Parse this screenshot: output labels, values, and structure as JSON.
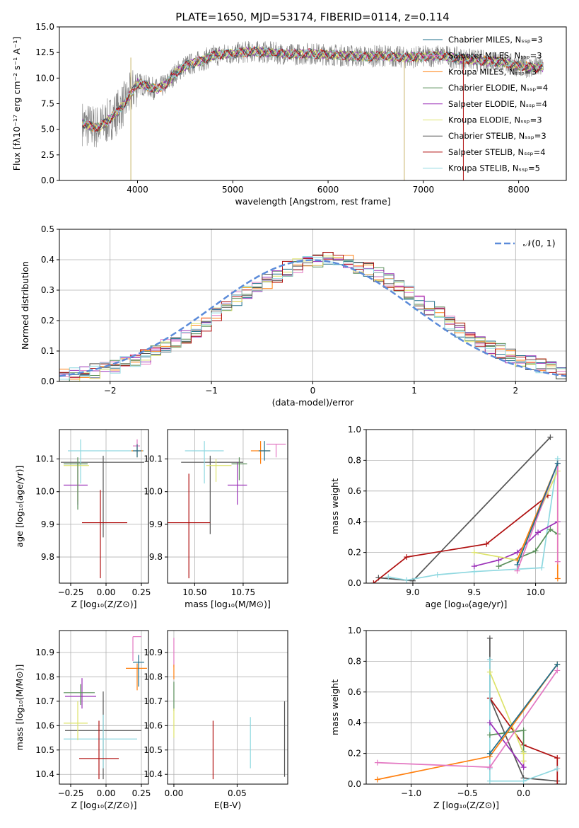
{
  "figure_title": "PLATE=1650, MJD=53174, FIBERID=0114, z=0.114",
  "colors": {
    "Chabrier MILES": "#1f6f8b",
    "Salpeter MILES": "#e377c2",
    "Kroupa MILES": "#ff7f0e",
    "Chabrier ELODIE": "#5a8f5a",
    "Salpeter ELODIE": "#9b30b8",
    "Kroupa ELODIE": "#dde36a",
    "Chabrier STELIB": "#555555",
    "Salpeter STELIB": "#b01010",
    "Kroupa STELIB": "#8fd8e0",
    "data": "#808080",
    "gaussian": "#5b8bd9"
  },
  "chart_data": [
    {
      "id": "spectrum",
      "type": "line",
      "title": "PLATE=1650, MJD=53174, FIBERID=0114, z=0.114",
      "xlabel": "wavelength [Angstrom, rest frame]",
      "ylabel": "Flux [fλ10⁻¹⁷ erg cm⁻² s⁻¹ A⁻¹]",
      "xlim": [
        3180,
        8500
      ],
      "ylim": [
        0,
        15
      ],
      "xticks": [
        "4000",
        "5000",
        "6000",
        "7000",
        "8000"
      ],
      "yticks": [
        "0.0",
        "2.5",
        "5.0",
        "7.5",
        "10.0",
        "12.5",
        "15.0"
      ],
      "legend_position": "right",
      "series": [
        {
          "name": "Chabrier MILES, Nₛₛₚ=3",
          "key": "Chabrier MILES"
        },
        {
          "name": "Salpeter MILES, Nₛₛₚ=3",
          "key": "Salpeter MILES"
        },
        {
          "name": "Kroupa MILES, Nₛₛₚ=3",
          "key": "Kroupa MILES"
        },
        {
          "name": "Chabrier ELODIE, Nₛₛₚ=4",
          "key": "Chabrier ELODIE"
        },
        {
          "name": "Salpeter ELODIE, Nₛₛₚ=4",
          "key": "Salpeter ELODIE"
        },
        {
          "name": "Kroupa ELODIE, Nₛₛₚ=3",
          "key": "Kroupa ELODIE"
        },
        {
          "name": "Chabrier STELIB, Nₛₛₚ=3",
          "key": "Chabrier STELIB"
        },
        {
          "name": "Salpeter STELIB, Nₛₛₚ=4",
          "key": "Salpeter STELIB"
        },
        {
          "name": "Kroupa STELIB, Nₛₛₚ=5",
          "key": "Kroupa STELIB"
        }
      ],
      "continuum": {
        "wavelength": [
          3420,
          3500,
          3600,
          3700,
          3800,
          3900,
          4000,
          4100,
          4200,
          4300,
          4400,
          4500,
          4600,
          4700,
          4800,
          5000,
          5200,
          5400,
          5600,
          5800,
          6000,
          6200,
          6400,
          6600,
          6800,
          7000,
          7200,
          7400,
          7600,
          7800,
          8000,
          8200,
          8260
        ],
        "flux": [
          5.6,
          5.3,
          5.2,
          5.9,
          6.8,
          8.0,
          9.5,
          9.2,
          8.9,
          9.4,
          10.5,
          11.2,
          11.5,
          11.8,
          12.2,
          12.4,
          12.6,
          12.5,
          12.3,
          12.4,
          12.3,
          12.2,
          12.1,
          12.2,
          12.0,
          12.1,
          12.2,
          11.9,
          11.7,
          11.6,
          11.2,
          11.0,
          11.1
        ]
      }
    },
    {
      "id": "residuals",
      "type": "histogram",
      "xlabel": "(data-model)/error",
      "ylabel": "Normed distribution",
      "xlim": [
        -2.5,
        2.5
      ],
      "ylim": [
        0,
        0.5
      ],
      "xticks": [
        "−2",
        "−1",
        "0",
        "1",
        "2"
      ],
      "yticks": [
        "0.0",
        "0.1",
        "0.2",
        "0.3",
        "0.4",
        "0.5"
      ],
      "bin_width": 0.1,
      "bin_start": -2.5,
      "gaussian_label": "𝒩(0, 1)",
      "reference_values": [
        0.02,
        0.025,
        0.03,
        0.035,
        0.04,
        0.048,
        0.058,
        0.07,
        0.082,
        0.1,
        0.115,
        0.13,
        0.15,
        0.17,
        0.19,
        0.22,
        0.24,
        0.27,
        0.29,
        0.31,
        0.33,
        0.35,
        0.37,
        0.38,
        0.39,
        0.4,
        0.41,
        0.4,
        0.39,
        0.38,
        0.37,
        0.35,
        0.33,
        0.31,
        0.29,
        0.26,
        0.24,
        0.22,
        0.19,
        0.17,
        0.15,
        0.13,
        0.11,
        0.1,
        0.085,
        0.07,
        0.06,
        0.05,
        0.04,
        0.03
      ]
    },
    {
      "id": "age-vs-Z",
      "type": "errorbar",
      "xlabel": "Z [log₁₀(Z/Z⊙)]",
      "ylabel": "age  [log₁₀(age/yr)]",
      "xlim": [
        -0.33,
        0.3
      ],
      "ylim": [
        9.72,
        10.19
      ],
      "xticks": [
        "−0.25",
        "0.00",
        "0.25"
      ],
      "yticks": [
        "9.8",
        "9.9",
        "10.0",
        "10.1"
      ],
      "points": [
        {
          "key": "Chabrier STELIB",
          "x": -0.02,
          "xerr": [
            0.3,
            0.29
          ],
          "y": 10.09,
          "yerr": [
            0.23,
            0.02
          ]
        },
        {
          "key": "Kroupa STELIB",
          "x": -0.18,
          "xerr": [
            0.09,
            0.45
          ],
          "y": 10.125,
          "yerr": [
            0.1,
            0.035
          ]
        },
        {
          "key": "Salpeter STELIB",
          "x": -0.04,
          "xerr": [
            0.13,
            0.19
          ],
          "y": 9.905,
          "yerr": [
            0.17,
            0.1
          ]
        },
        {
          "key": "Salpeter ELODIE",
          "x": -0.2,
          "xerr": [
            0.1,
            0.07
          ],
          "y": 10.02,
          "yerr": [
            0.06,
            0.07
          ]
        },
        {
          "key": "Kroupa ELODIE",
          "x": -0.2,
          "xerr": [
            0.1,
            0.08
          ],
          "y": 10.08,
          "yerr": [
            0.11,
            0.01
          ]
        },
        {
          "key": "Chabrier ELODIE",
          "x": -0.2,
          "xerr": [
            0.1,
            0.07
          ],
          "y": 10.085,
          "yerr": [
            0.14,
            0.02
          ]
        },
        {
          "key": "Kroupa MILES",
          "x": 0.22,
          "xerr": [
            0.04,
            0.04
          ],
          "y": 10.125,
          "yerr": [
            0.02,
            0.02
          ]
        },
        {
          "key": "Salpeter MILES",
          "x": 0.22,
          "xerr": [
            0.03,
            0.02
          ],
          "y": 10.14,
          "yerr": [
            0.02,
            0.02
          ]
        },
        {
          "key": "Chabrier MILES",
          "x": 0.22,
          "xerr": [
            0.03,
            0.03
          ],
          "y": 10.125,
          "yerr": [
            0.02,
            0.02
          ]
        }
      ]
    },
    {
      "id": "age-vs-mass",
      "type": "errorbar",
      "xlabel": "mass [log₁₀(M/M⊙)]",
      "ylabel": "",
      "xlim": [
        10.36,
        10.98
      ],
      "ylim": [
        9.72,
        10.19
      ],
      "xticks": [
        "10.50",
        "10.75"
      ],
      "yticks": [
        "9.8",
        "9.9",
        "10.0",
        "10.1"
      ],
      "points": [
        {
          "key": "Chabrier STELIB",
          "x": 10.58,
          "xerr": [
            0.15,
            0.17
          ],
          "y": 10.09,
          "yerr": [
            0.22,
            0.02
          ]
        },
        {
          "key": "Kroupa STELIB",
          "x": 10.55,
          "xerr": [
            0.1,
            0.1
          ],
          "y": 10.125,
          "yerr": [
            0.1,
            0.03
          ]
        },
        {
          "key": "Salpeter STELIB",
          "x": 10.47,
          "xerr": [
            0.11,
            0.11
          ],
          "y": 9.905,
          "yerr": [
            0.17,
            0.15
          ]
        },
        {
          "key": "Salpeter ELODIE",
          "x": 10.72,
          "xerr": [
            0.05,
            0.05
          ],
          "y": 10.02,
          "yerr": [
            0.06,
            0.07
          ]
        },
        {
          "key": "Kroupa ELODIE",
          "x": 10.61,
          "xerr": [
            0.05,
            0.08
          ],
          "y": 10.08,
          "yerr": [
            0.05,
            0.02
          ]
        },
        {
          "key": "Chabrier ELODIE",
          "x": 10.73,
          "xerr": [
            0.04,
            0.04
          ],
          "y": 10.085,
          "yerr": [
            0.05,
            0.02
          ]
        },
        {
          "key": "Kroupa MILES",
          "x": 10.84,
          "xerr": [
            0.05,
            0.05
          ],
          "y": 10.125,
          "yerr": [
            0.04,
            0.03
          ]
        },
        {
          "key": "Salpeter MILES",
          "x": 10.92,
          "xerr": [
            0.05,
            0.05
          ],
          "y": 10.145,
          "yerr": [
            0.04,
            0.0
          ]
        },
        {
          "key": "Chabrier MILES",
          "x": 10.86,
          "xerr": [
            0.03,
            0.03
          ],
          "y": 10.125,
          "yerr": [
            0.03,
            0.03
          ]
        }
      ]
    },
    {
      "id": "weight-vs-age",
      "type": "line",
      "xlabel": "age  [log₁₀(age/yr)]",
      "ylabel": "mass weight",
      "xlim": [
        8.62,
        10.25
      ],
      "ylim": [
        0,
        1
      ],
      "xticks": [
        "9.0",
        "9.5",
        "10.0"
      ],
      "yticks": [
        "0.0",
        "0.2",
        "0.4",
        "0.6",
        "0.8",
        "1.0"
      ],
      "series": [
        {
          "key": "Chabrier STELIB",
          "x": [
            8.72,
            9.0,
            10.12
          ],
          "y": [
            0.035,
            0.015,
            0.95
          ]
        },
        {
          "key": "Salpeter STELIB",
          "x": [
            8.68,
            8.95,
            9.6,
            10.1
          ],
          "y": [
            0.0,
            0.17,
            0.255,
            0.57
          ]
        },
        {
          "key": "Kroupa STELIB",
          "x": [
            8.8,
            8.95,
            9.2,
            9.5,
            10.05,
            10.18
          ],
          "y": [
            0.04,
            0.02,
            0.055,
            0.075,
            0.1,
            0.81
          ]
        },
        {
          "key": "Chabrier ELODIE",
          "x": [
            9.7,
            10.0,
            10.12,
            10.18
          ],
          "y": [
            0.11,
            0.21,
            0.35,
            0.32
          ]
        },
        {
          "key": "Salpeter ELODIE",
          "x": [
            9.5,
            9.7,
            9.85,
            10.02,
            10.18
          ],
          "y": [
            0.11,
            0.15,
            0.2,
            0.33,
            0.4
          ]
        },
        {
          "key": "Kroupa ELODIE",
          "x": [
            9.5,
            9.85,
            10.18
          ],
          "y": [
            0.2,
            0.15,
            0.73
          ]
        },
        {
          "key": "Kroupa MILES",
          "x": [
            9.85,
            10.18,
            10.18
          ],
          "y": [
            0.15,
            0.78,
            0.03
          ]
        },
        {
          "key": "Salpeter MILES",
          "x": [
            9.85,
            10.18,
            10.18
          ],
          "y": [
            0.08,
            0.78,
            0.14
          ]
        },
        {
          "key": "Chabrier MILES",
          "x": [
            9.85,
            10.18
          ],
          "y": [
            0.12,
            0.78
          ]
        }
      ]
    },
    {
      "id": "mass-vs-Z",
      "type": "errorbar",
      "xlabel": "Z [log₁₀(Z/Z⊙)]",
      "ylabel": "mass [log₁₀(M/M⊙)]",
      "xlim": [
        -0.33,
        0.3
      ],
      "ylim": [
        10.36,
        10.99
      ],
      "xticks": [
        "−0.25",
        "0.00",
        "0.25"
      ],
      "yticks": [
        "10.4",
        "10.5",
        "10.6",
        "10.7",
        "10.8",
        "10.9"
      ],
      "points": [
        {
          "key": "Chabrier STELIB",
          "x": -0.02,
          "xerr": [
            0.27,
            0.27
          ],
          "y": 10.58,
          "yerr": [
            0.2,
            0.16
          ]
        },
        {
          "key": "Kroupa STELIB",
          "x": -0.02,
          "xerr": [
            0.28,
            0.24
          ],
          "y": 10.545,
          "yerr": [
            0.12,
            0.1
          ]
        },
        {
          "key": "Salpeter STELIB",
          "x": -0.05,
          "xerr": [
            0.14,
            0.14
          ],
          "y": 10.465,
          "yerr": [
            0.085,
            0.155
          ]
        },
        {
          "key": "Salpeter ELODIE",
          "x": -0.17,
          "xerr": [
            0.12,
            0.1
          ],
          "y": 10.72,
          "yerr": [
            0.05,
            0.075
          ]
        },
        {
          "key": "Kroupa ELODIE",
          "x": -0.2,
          "xerr": [
            0.1,
            0.07
          ],
          "y": 10.61,
          "yerr": [
            0.07,
            0.09
          ]
        },
        {
          "key": "Chabrier ELODIE",
          "x": -0.18,
          "xerr": [
            0.12,
            0.1
          ],
          "y": 10.735,
          "yerr": [
            0.05,
            0.035
          ]
        },
        {
          "key": "Kroupa MILES",
          "x": 0.22,
          "xerr": [
            0.08,
            0.07
          ],
          "y": 10.835,
          "yerr": [
            0.09,
            0.02
          ]
        },
        {
          "key": "Salpeter MILES",
          "x": 0.19,
          "xerr": [
            0.0,
            0.06
          ],
          "y": 10.965,
          "yerr": [
            0.1,
            0.0
          ]
        },
        {
          "key": "Chabrier MILES",
          "x": 0.23,
          "xerr": [
            0.04,
            0.04
          ],
          "y": 10.86,
          "yerr": [
            0.1,
            0.03
          ]
        }
      ]
    },
    {
      "id": "mass-vs-ebv",
      "type": "errorbar",
      "xlabel": "E(B-V)",
      "ylabel": "",
      "xlim": [
        -0.005,
        0.09
      ],
      "ylim": [
        10.36,
        10.99
      ],
      "xticks": [
        "0.00",
        "0.05"
      ],
      "yticks": [
        "10.4",
        "10.5",
        "10.6",
        "10.7",
        "10.8",
        "10.9"
      ],
      "points": [
        {
          "key": "Salpeter MILES",
          "x": 0.0,
          "xerr": [
            0,
            0
          ],
          "y": 10.9,
          "yerr": [
            0.06,
            0.06
          ]
        },
        {
          "key": "Kroupa MILES",
          "x": 0.0,
          "xerr": [
            0,
            0
          ],
          "y": 10.82,
          "yerr": [
            0.03,
            0.03
          ]
        },
        {
          "key": "Chabrier ELODIE",
          "x": 0.0,
          "xerr": [
            0,
            0
          ],
          "y": 10.72,
          "yerr": [
            0.06,
            0.06
          ]
        },
        {
          "key": "Kroupa ELODIE",
          "x": 0.0,
          "xerr": [
            0,
            0
          ],
          "y": 10.61,
          "yerr": [
            0.06,
            0.06
          ]
        },
        {
          "key": "Salpeter STELIB",
          "x": 0.031,
          "xerr": [
            0,
            0
          ],
          "y": 10.5,
          "yerr": [
            0.12,
            0.12
          ]
        },
        {
          "key": "Kroupa STELIB",
          "x": 0.0605,
          "xerr": [
            0,
            0
          ],
          "y": 10.53,
          "yerr": [
            0.105,
            0.105
          ]
        },
        {
          "key": "Chabrier STELIB",
          "x": 0.0875,
          "xerr": [
            0,
            0
          ],
          "y": 10.545,
          "yerr": [
            0.155,
            0.155
          ]
        }
      ]
    },
    {
      "id": "weight-vs-Z",
      "type": "line",
      "xlabel": "Z [log₁₀(Z/Z⊙)]",
      "ylabel": "mass weight",
      "xlim": [
        -1.4,
        0.38
      ],
      "ylim": [
        0,
        1
      ],
      "xticks": [
        "−1.0",
        "−0.5",
        "0.0"
      ],
      "yticks": [
        "0.0",
        "0.2",
        "0.4",
        "0.6",
        "0.8",
        "1.0"
      ],
      "series": [
        {
          "key": "Chabrier STELIB",
          "x": [
            -0.3,
            -0.3,
            0.0,
            0.3
          ],
          "y": [
            0.95,
            0.56,
            0.04,
            0.02
          ]
        },
        {
          "key": "Salpeter STELIB",
          "x": [
            -0.3,
            0.0,
            0.3,
            0.3
          ],
          "y": [
            0.56,
            0.255,
            0.17,
            0.0
          ]
        },
        {
          "key": "Kroupa STELIB",
          "x": [
            -0.3,
            -0.3,
            -0.3,
            0.0,
            0.3
          ],
          "y": [
            0.81,
            0.1,
            0.02,
            0.02,
            0.1
          ]
        },
        {
          "key": "Chabrier ELODIE",
          "x": [
            -0.3,
            0.0,
            0.0
          ],
          "y": [
            0.32,
            0.35,
            0.21
          ]
        },
        {
          "key": "Salpeter ELODIE",
          "x": [
            -0.3,
            0.0,
            0.0
          ],
          "y": [
            0.4,
            0.11,
            0.15
          ]
        },
        {
          "key": "Kroupa ELODIE",
          "x": [
            -0.3,
            0.0,
            0.0
          ],
          "y": [
            0.73,
            0.2,
            0.15
          ]
        },
        {
          "key": "Kroupa MILES",
          "x": [
            -1.3,
            -0.3,
            0.3
          ],
          "y": [
            0.03,
            0.18,
            0.78
          ]
        },
        {
          "key": "Salpeter MILES",
          "x": [
            -1.3,
            -0.3,
            0.3
          ],
          "y": [
            0.14,
            0.11,
            0.74
          ]
        },
        {
          "key": "Chabrier MILES",
          "x": [
            -0.3,
            0.3
          ],
          "y": [
            0.2,
            0.78
          ]
        }
      ]
    }
  ]
}
